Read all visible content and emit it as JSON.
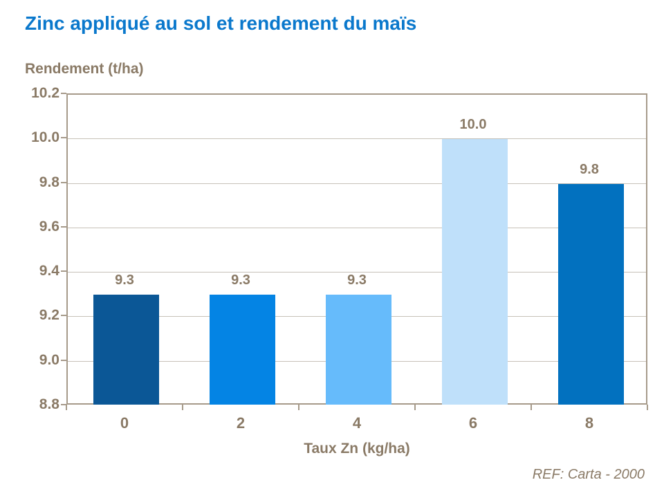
{
  "header": {
    "title": "Zinc appliqué au sol et rendement du maïs",
    "title_color": "#0A78CC"
  },
  "chart_data": {
    "type": "bar",
    "title": "Zinc appliqué au sol et rendement du maïs",
    "categories": [
      "0",
      "2",
      "4",
      "6",
      "8"
    ],
    "values": [
      9.3,
      9.3,
      9.3,
      10.0,
      9.8
    ],
    "value_labels": [
      "9.3",
      "9.3",
      "9.3",
      "10.0",
      "9.8"
    ],
    "bar_colors": [
      "#0B5796",
      "#0484E4",
      "#66BBFB",
      "#BFE0FA",
      "#0271BF"
    ],
    "xlabel": "Taux Zn (kg/ha)",
    "ylabel": "Rendement (t/ha)",
    "ylim": [
      8.8,
      10.2
    ],
    "ytick_step": 0.2,
    "yticks": [
      "10.2",
      "10.0",
      "9.8",
      "9.6",
      "9.4",
      "9.2",
      "9.0",
      "8.8"
    ],
    "grid": true,
    "legend": false,
    "text_color": "#8A7A66",
    "frame_color": "#A69A8A",
    "grid_color": "#C7C1B8"
  },
  "footer": {
    "reference": "REF: Carta - 2000"
  }
}
